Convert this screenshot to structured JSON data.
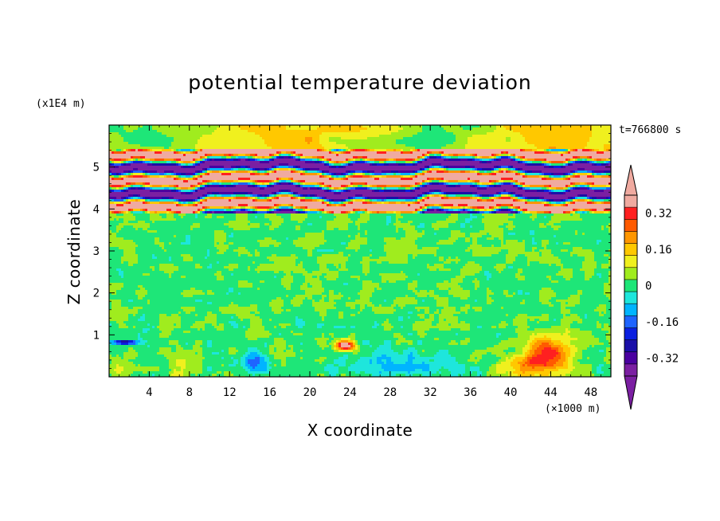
{
  "chart_data": {
    "type": "heatmap",
    "title": "potential temperature deviation",
    "xlabel": "X coordinate",
    "ylabel": "Z coordinate",
    "x_unit": "(×1000 m)",
    "y_unit": "(x1E4 m)",
    "time_label": "t=766800 s",
    "xlim": [
      0,
      50
    ],
    "ylim": [
      0,
      6
    ],
    "xticks": [
      4,
      8,
      12,
      16,
      20,
      24,
      28,
      32,
      36,
      40,
      44,
      48
    ],
    "yticks": [
      1,
      2,
      3,
      4,
      5
    ],
    "colorbar": {
      "levels": [
        -0.4,
        -0.36,
        -0.32,
        -0.28,
        -0.24,
        -0.2,
        -0.16,
        -0.12,
        -0.08,
        -0.04,
        0,
        0.04,
        0.08,
        0.12,
        0.16,
        0.2,
        0.24,
        0.28,
        0.32,
        0.36,
        0.4
      ],
      "colors": [
        "#7b1fa2",
        "#4a00a0",
        "#1a0fa8",
        "#0a1fe0",
        "#1e64ff",
        "#00b4ff",
        "#1ee6dc",
        "#1ee678",
        "#a0ec1e",
        "#f0f01e",
        "#ffc800",
        "#ff9600",
        "#ff5a00",
        "#ff2020",
        "#f0aaa0"
      ],
      "tick_labels": [
        "0.32",
        "0.16",
        "0",
        "-0.16",
        "-0.32"
      ],
      "tick_values": [
        0.32,
        0.16,
        0,
        -0.16,
        -0.32
      ],
      "extend": "both"
    }
  }
}
